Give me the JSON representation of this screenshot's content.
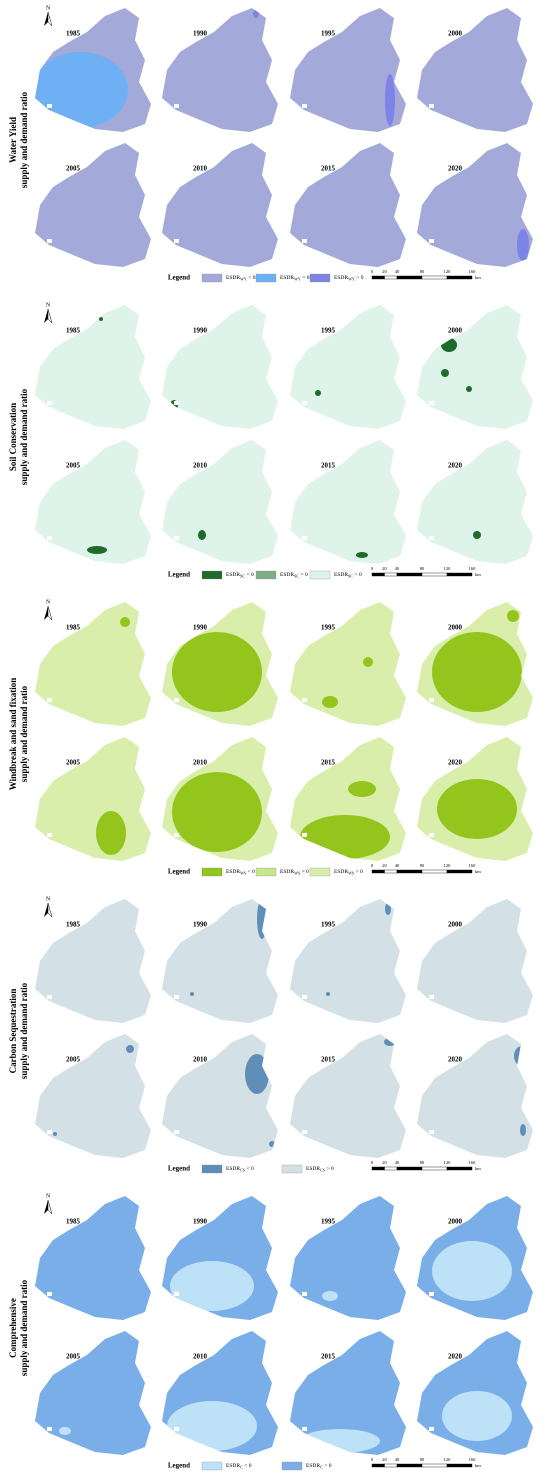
{
  "north": "N",
  "sections": [
    {
      "label_lines": [
        "Water Yield",
        "supply and demand ratio"
      ],
      "years": [
        "1985",
        "1990",
        "1995",
        "2000",
        "2005",
        "2010",
        "2015",
        "2020"
      ],
      "legend_title": "Legend",
      "legend": [
        {
          "main": "ESDR",
          "sub": "WY",
          "cond": "< 0",
          "color": "#a3a9d9"
        },
        {
          "main": "ESDR",
          "sub": "WY",
          "cond": "= 0",
          "color": "#6fb0f5"
        },
        {
          "main": "ESDR",
          "sub": "WY",
          "cond": "> 0",
          "color": "#7d84e6"
        }
      ],
      "scale": {
        "ticks": [
          0,
          20,
          40,
          80,
          120,
          160
        ],
        "unit": "km"
      }
    },
    {
      "label_lines": [
        "Soil Conservation",
        "supply and demand ratio"
      ],
      "years": [
        "1985",
        "1990",
        "1995",
        "2000",
        "2005",
        "2010",
        "2015",
        "2020"
      ],
      "legend_title": "Legend",
      "legend": [
        {
          "main": "ESDR",
          "sub": "SC",
          "cond": "< 0",
          "color": "#1f6b2a"
        },
        {
          "main": "ESDR",
          "sub": "SC",
          "cond": "= 0",
          "color": "#7fae86"
        },
        {
          "main": "ESDR",
          "sub": "SC",
          "cond": "> 0",
          "color": "#def3ea"
        }
      ],
      "scale": {
        "ticks": [
          0,
          20,
          40,
          80,
          120,
          160
        ],
        "unit": "km"
      }
    },
    {
      "label_lines": [
        "Windbreak and sand fixation",
        "supply and demand ratio"
      ],
      "years": [
        "1985",
        "1990",
        "1995",
        "2000",
        "2005",
        "2010",
        "2015",
        "2020"
      ],
      "legend_title": "Legend",
      "legend": [
        {
          "main": "ESDR",
          "sub": "WS",
          "cond": "< 0",
          "color": "#93c51c"
        },
        {
          "main": "ESDR",
          "sub": "WS",
          "cond": "= 0",
          "color": "#c6e68a"
        },
        {
          "main": "ESDR",
          "sub": "WS",
          "cond": "> 0",
          "color": "#d8eeaa"
        }
      ],
      "scale": {
        "ticks": [
          0,
          20,
          40,
          80,
          120,
          160
        ],
        "unit": "km"
      }
    },
    {
      "label_lines": [
        "Carbon Sequestration",
        "supply and demand ratio"
      ],
      "years": [
        "1985",
        "1990",
        "1995",
        "2000",
        "2005",
        "2010",
        "2015",
        "2020"
      ],
      "legend_title": "Legend",
      "legend": [
        {
          "main": "ESDR",
          "sub": "CS",
          "cond": "< 0",
          "color": "#5f8fb8"
        },
        {
          "main": "ESDR",
          "sub": "CS",
          "cond": "> 0",
          "color": "#d3e0e5"
        }
      ],
      "scale": {
        "ticks": [
          0,
          20,
          40,
          80,
          120,
          160
        ],
        "unit": "km"
      }
    },
    {
      "label_lines": [
        "Comprehensive",
        "supply and demand ratio"
      ],
      "years": [
        "1985",
        "1990",
        "1995",
        "2000",
        "2005",
        "2010",
        "2015",
        "2020"
      ],
      "legend_title": "Legend",
      "legend": [
        {
          "main": "ESDR",
          "sub": "C",
          "cond": "< 0",
          "color": "#bde2f7"
        },
        {
          "main": "ESDR",
          "sub": "C",
          "cond": "> 0",
          "color": "#79aee8"
        }
      ],
      "scale": {
        "ticks": [
          0,
          20,
          40,
          80,
          120,
          160
        ],
        "unit": "km"
      }
    }
  ]
}
